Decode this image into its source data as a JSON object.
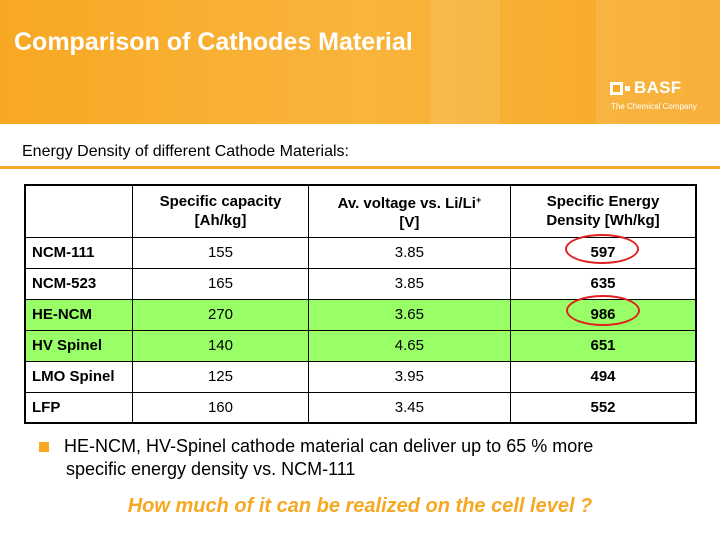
{
  "header": {
    "title": "Comparison of Cathodes Material",
    "logo": {
      "name": "BASF",
      "tagline": "The Chemical Company"
    }
  },
  "subtitle": "Energy Density of different Cathode Materials:",
  "table": {
    "headers": {
      "col1": [
        "Specific capacity",
        "[Ah/kg]"
      ],
      "col2": [
        "Av. voltage vs. Li/Li",
        "+",
        "[V]"
      ],
      "col3": [
        "Specific Energy",
        "Density [Wh/kg]"
      ]
    },
    "rows": [
      {
        "material": "NCM-111",
        "capacity": "155",
        "voltage": "3.85",
        "energy": "597"
      },
      {
        "material": "NCM-523",
        "capacity": "165",
        "voltage": "3.85",
        "energy": "635"
      },
      {
        "material": "HE-NCM",
        "capacity": "270",
        "voltage": "3.65",
        "energy": "986"
      },
      {
        "material": "HV Spinel",
        "capacity": "140",
        "voltage": "4.65",
        "energy": "651"
      },
      {
        "material": "LMO Spinel",
        "capacity": "125",
        "voltage": "3.95",
        "energy": "494"
      },
      {
        "material": "LFP",
        "capacity": "160",
        "voltage": "3.45",
        "energy": "552"
      }
    ]
  },
  "bullet": {
    "line1": "HE-NCM, HV-Spinel cathode material can deliver up to 65 % more",
    "line2": "specific energy density vs. NCM-111"
  },
  "question": "How much of it can be realized on the cell level ?",
  "colors": {
    "accent": "#f7a823",
    "highlight_row": "#99ff66",
    "circle": "#e02020"
  }
}
